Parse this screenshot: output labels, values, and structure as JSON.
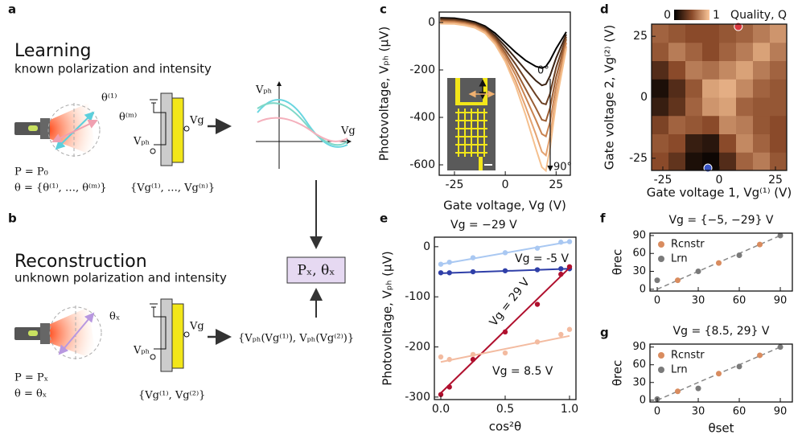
{
  "panel_labels": [
    "a",
    "b",
    "c",
    "d",
    "e",
    "f",
    "g"
  ],
  "diagram": {
    "learning": {
      "title": "Learning",
      "subtitle": "known polarization and intensity",
      "theta_1": "θ⁽¹⁾",
      "theta_m": "θ⁽ᵐ⁾",
      "gate": "Vg",
      "photo": "Vₚₕ",
      "power": "P = P₀",
      "angles": "θ = {θ⁽¹⁾, …, θ⁽ᵐ⁾}",
      "gates": "{Vg⁽¹⁾, …, Vg⁽ⁿ⁾}",
      "plot_y": "Vₚₕ",
      "plot_x": "Vg"
    },
    "reconstruction": {
      "title": "Reconstruction",
      "subtitle": "unknown polarization and intensity",
      "theta_x": "θₓ",
      "gate": "Vg",
      "photo": "Vₚₕ",
      "power": "P = Pₓ",
      "angle": "θ = θₓ",
      "gates": "{Vg⁽¹⁾, Vg⁽²⁾}",
      "measured": "{Vₚₕ(Vg⁽¹⁾), Vₚₕ(Vg⁽²⁾)}",
      "result": "Pₓ, θₓ"
    }
  },
  "chart_data": [
    {
      "type": "line",
      "xlabel": "Gate voltage, Vg (V)",
      "ylabel": "Photovoltage, Vₚₕ (μV)",
      "xlim": [
        -32.5,
        32
      ],
      "ylim": [
        -644,
        44
      ],
      "xticks": [
        -25,
        0,
        25
      ],
      "yticks": [
        0,
        -200,
        -400,
        -600
      ],
      "annotations": [
        "0°",
        "90°"
      ],
      "x": [
        -32,
        -25,
        -20,
        -15,
        -10,
        -5,
        0,
        5,
        10,
        15,
        18,
        20,
        22,
        25,
        30
      ],
      "series": [
        {
          "color": "#000000",
          "values": [
            20,
            18,
            12,
            2,
            -15,
            -45,
            -85,
            -125,
            -160,
            -185,
            -192,
            -185,
            -160,
            -110,
            -40
          ]
        },
        {
          "color": "#3b2314",
          "values": [
            16,
            14,
            8,
            -2,
            -20,
            -55,
            -100,
            -150,
            -200,
            -245,
            -265,
            -260,
            -225,
            -150,
            -50
          ]
        },
        {
          "color": "#6b3f22",
          "values": [
            12,
            10,
            4,
            -6,
            -25,
            -62,
            -115,
            -175,
            -240,
            -305,
            -340,
            -345,
            -300,
            -190,
            -60
          ]
        },
        {
          "color": "#9a5d33",
          "values": [
            8,
            6,
            0,
            -10,
            -30,
            -70,
            -128,
            -200,
            -280,
            -360,
            -410,
            -415,
            -360,
            -230,
            -70
          ]
        },
        {
          "color": "#c98350",
          "values": [
            4,
            2,
            -4,
            -14,
            -35,
            -78,
            -140,
            -220,
            -315,
            -410,
            -470,
            -480,
            -420,
            -270,
            -85
          ]
        },
        {
          "color": "#e4a270",
          "values": [
            0,
            -2,
            -8,
            -18,
            -40,
            -85,
            -155,
            -245,
            -355,
            -470,
            -545,
            -560,
            -480,
            -310,
            -100
          ]
        },
        {
          "color": "#f5c08e",
          "values": [
            -5,
            -6,
            -12,
            -22,
            -45,
            -92,
            -165,
            -265,
            -390,
            -530,
            -610,
            -625,
            -530,
            -340,
            -110
          ]
        }
      ]
    },
    {
      "type": "heatmap",
      "title": "Quality, Q",
      "xlabel": "Gate voltage 1, Vg⁽¹⁾ (V)",
      "ylabel": "Gate voltage 2, Vg⁽²⁾ (V)",
      "xlim": [
        -30,
        30
      ],
      "ylim": [
        -30,
        30
      ],
      "xticks": [
        -25,
        0,
        25
      ],
      "yticks": [
        -25,
        0,
        25
      ],
      "colorbar_ticks": [
        0,
        1
      ],
      "xbins": [
        -30,
        -22.5,
        -15,
        -7.5,
        0,
        7.5,
        15,
        22.5,
        30
      ],
      "ybins": [
        -30,
        -22.5,
        -15,
        -7.5,
        0,
        7.5,
        15,
        22.5,
        30
      ],
      "z": [
        [
          0.5,
          0.35,
          0.1,
          0.05,
          0.3,
          0.6,
          0.7,
          0.55
        ],
        [
          0.55,
          0.5,
          0.2,
          0.15,
          0.5,
          0.75,
          0.6,
          0.5
        ],
        [
          0.45,
          0.6,
          0.55,
          0.5,
          0.75,
          0.7,
          0.55,
          0.5
        ],
        [
          0.2,
          0.35,
          0.6,
          0.8,
          0.85,
          0.6,
          0.55,
          0.55
        ],
        [
          0.1,
          0.3,
          0.55,
          0.85,
          0.9,
          0.75,
          0.6,
          0.55
        ],
        [
          0.3,
          0.5,
          0.7,
          0.65,
          0.75,
          0.85,
          0.7,
          0.6
        ],
        [
          0.55,
          0.7,
          0.6,
          0.5,
          0.6,
          0.7,
          0.85,
          0.7
        ],
        [
          0.6,
          0.55,
          0.5,
          0.5,
          0.55,
          0.6,
          0.7,
          0.8
        ]
      ],
      "markers": [
        {
          "x": 8.5,
          "y": 29,
          "color": "#d9363e"
        },
        {
          "x": -5,
          "y": -29,
          "color": "#3a56c8"
        }
      ]
    },
    {
      "type": "scatter",
      "xlabel": "cos²θ",
      "ylabel": "Photovoltage, Vₚₕ (μV)",
      "xlim": [
        -0.05,
        1.05
      ],
      "ylim": [
        -305,
        19
      ],
      "xticks": [
        {
          "value": 0,
          "label": "0.0"
        },
        {
          "value": 0.5,
          "label": "0.5"
        },
        {
          "value": 1,
          "label": "1.0"
        }
      ],
      "yticks": [
        0,
        -100,
        -200,
        -300
      ],
      "series": [
        {
          "name": "Vg = −29 V",
          "color": "#a9c8f2",
          "x": [
            0,
            0.067,
            0.25,
            0.5,
            0.75,
            0.933,
            1
          ],
          "values": [
            -35,
            -31,
            -22,
            -12,
            -3,
            9,
            10
          ],
          "fit": {
            "x": [
              0,
              1
            ],
            "values": [
              -35,
              10
            ]
          }
        },
        {
          "name": "Vg = -5 V",
          "color": "#2f3fa8",
          "x": [
            0,
            0.067,
            0.25,
            0.5,
            0.75,
            0.933,
            1
          ],
          "values": [
            -52,
            -52,
            -50,
            -48,
            -46,
            -44,
            -44
          ],
          "fit": {
            "x": [
              0,
              1
            ],
            "values": [
              -53,
              -44
            ]
          }
        },
        {
          "name": "Vg = 29 V",
          "color": "#b0102e",
          "x": [
            0,
            0.067,
            0.25,
            0.5,
            0.75,
            0.933,
            1
          ],
          "values": [
            -295,
            -280,
            -225,
            -170,
            -115,
            -55,
            -40
          ],
          "fit": {
            "x": [
              0,
              1
            ],
            "values": [
              -292,
              -42
            ]
          }
        },
        {
          "name": "Vg = 8.5 V",
          "color": "#f3bba0",
          "x": [
            0,
            0.067,
            0.25,
            0.5,
            0.75,
            0.933,
            1
          ],
          "values": [
            -220,
            -225,
            -215,
            -212,
            -190,
            -175,
            -165
          ],
          "fit": {
            "x": [
              0,
              1
            ],
            "values": [
              -230,
              -178
            ]
          }
        }
      ]
    },
    {
      "type": "scatter",
      "title": "Vg = {−5, −29} V",
      "ylabel": "θrec",
      "xlim": [
        -5.3,
        98.8
      ],
      "ylim": [
        -3,
        94
      ],
      "xticks": [
        0,
        30,
        60,
        90
      ],
      "yticks": [
        0,
        30,
        60,
        90
      ],
      "reference": {
        "x": [
          0,
          90
        ],
        "values": [
          0,
          90
        ]
      },
      "series": [
        {
          "name": "Rcnstr",
          "color": "#d98c5f",
          "x": [
            15,
            45,
            75
          ],
          "values": [
            15,
            44,
            75
          ]
        },
        {
          "name": "Lrn",
          "color": "#7a7a7a",
          "x": [
            0,
            30,
            60,
            90
          ],
          "values": [
            15,
            30,
            57,
            90
          ]
        }
      ]
    },
    {
      "type": "scatter",
      "title": "Vg = {8.5, 29} V",
      "xlabel": "θset",
      "ylabel": "θrec",
      "xlim": [
        -5.3,
        98.8
      ],
      "ylim": [
        -3,
        95
      ],
      "xticks": [
        0,
        30,
        60,
        90
      ],
      "yticks": [
        0,
        30,
        60,
        90
      ],
      "reference": {
        "x": [
          0,
          90
        ],
        "values": [
          0,
          90
        ]
      },
      "series": [
        {
          "name": "Rcnstr",
          "color": "#d98c5f",
          "x": [
            15,
            45,
            75
          ],
          "values": [
            15,
            45,
            76
          ]
        },
        {
          "name": "Lrn",
          "color": "#7a7a7a",
          "x": [
            0,
            30,
            60,
            90
          ],
          "values": [
            2,
            20,
            57,
            90
          ]
        }
      ]
    }
  ]
}
